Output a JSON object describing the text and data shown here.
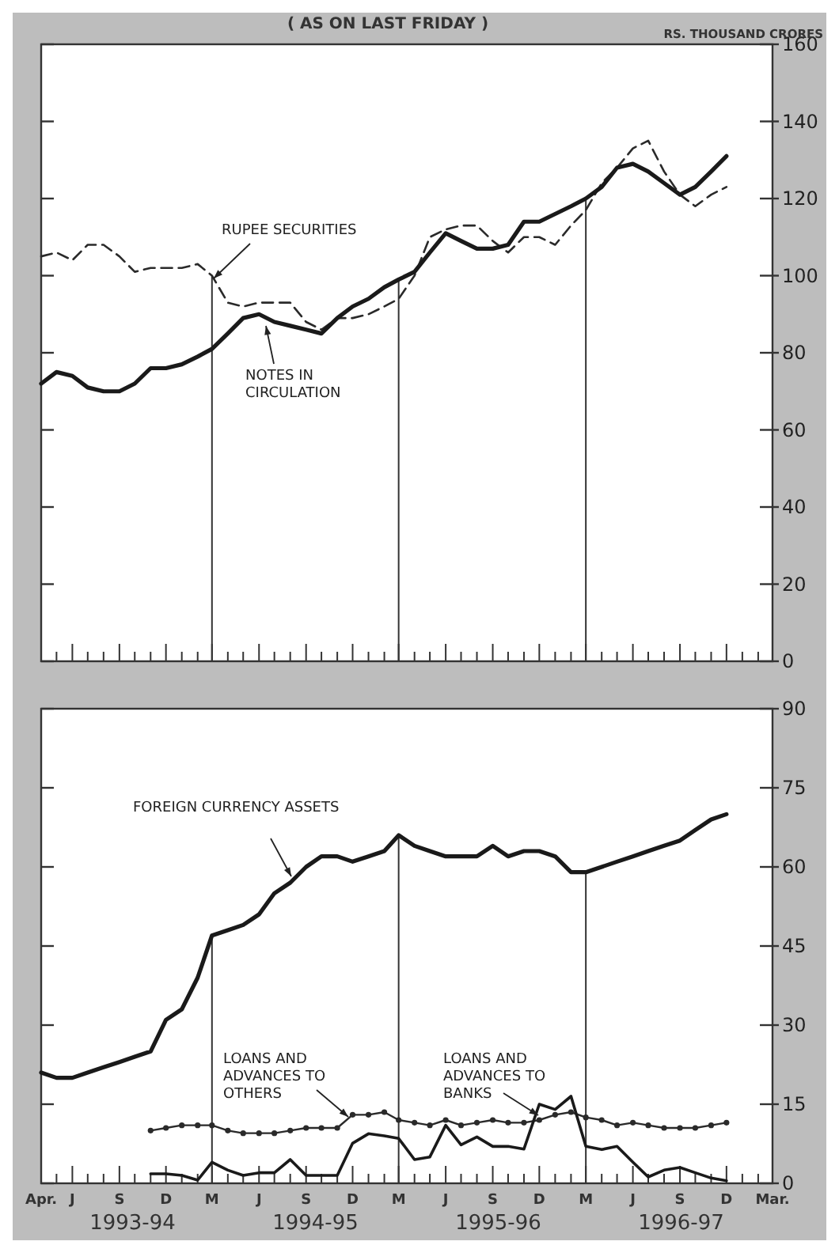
{
  "chart_data": [
    {
      "type": "line",
      "title": "( AS ON LAST FRIDAY )",
      "ylabel": "RS. THOUSAND CRORES",
      "xlim": [
        "1993-04",
        "1997-03"
      ],
      "ylim": [
        0,
        160
      ],
      "yticks": [
        0,
        20,
        40,
        60,
        80,
        100,
        120,
        140,
        160
      ],
      "tick_labels": "y",
      "xticks": [
        {
          "value": "1993-04",
          "label": null
        },
        {
          "value": "1993-05",
          "label": null
        },
        {
          "value": "1993-06",
          "label": null
        },
        {
          "value": "1993-07",
          "label": null
        },
        {
          "value": "1993-08",
          "label": null
        },
        {
          "value": "1993-09",
          "label": null
        },
        {
          "value": "1993-10",
          "label": null
        },
        {
          "value": "1993-11",
          "label": null
        },
        {
          "value": "1993-12",
          "label": null
        },
        {
          "value": "1994-01",
          "label": null
        },
        {
          "value": "1994-02",
          "label": null
        },
        {
          "value": "1994-03",
          "label": null
        },
        {
          "value": "1994-04",
          "label": null
        },
        {
          "value": "1994-05",
          "label": null
        },
        {
          "value": "1994-06",
          "label": null
        },
        {
          "value": "1994-07",
          "label": null
        },
        {
          "value": "1994-08",
          "label": null
        },
        {
          "value": "1994-09",
          "label": null
        },
        {
          "value": "1994-10",
          "label": null
        },
        {
          "value": "1994-11",
          "label": null
        },
        {
          "value": "1994-12",
          "label": null
        },
        {
          "value": "1995-01",
          "label": null
        },
        {
          "value": "1995-02",
          "label": null
        },
        {
          "value": "1995-03",
          "label": null
        },
        {
          "value": "1995-04",
          "label": null
        },
        {
          "value": "1995-05",
          "label": null
        },
        {
          "value": "1995-06",
          "label": null
        },
        {
          "value": "1995-07",
          "label": null
        },
        {
          "value": "1995-08",
          "label": null
        },
        {
          "value": "1995-09",
          "label": null
        },
        {
          "value": "1995-10",
          "label": null
        },
        {
          "value": "1995-11",
          "label": null
        },
        {
          "value": "1995-12",
          "label": null
        },
        {
          "value": "1996-01",
          "label": null
        },
        {
          "value": "1996-02",
          "label": null
        },
        {
          "value": "1996-03",
          "label": null
        },
        {
          "value": "1996-04",
          "label": null
        },
        {
          "value": "1996-05",
          "label": null
        },
        {
          "value": "1996-06",
          "label": null
        },
        {
          "value": "1996-07",
          "label": null
        },
        {
          "value": "1996-08",
          "label": null
        },
        {
          "value": "1996-09",
          "label": null
        },
        {
          "value": "1996-10",
          "label": null
        },
        {
          "value": "1996-11",
          "label": null
        },
        {
          "value": "1996-12",
          "label": null
        },
        {
          "value": "1997-01",
          "label": null
        },
        {
          "value": "1997-02",
          "label": null
        },
        {
          "value": "1997-03",
          "label": null
        }
      ],
      "x": [
        "1993-04",
        "1993-05",
        "1993-06",
        "1993-07",
        "1993-08",
        "1993-09",
        "1993-10",
        "1993-11",
        "1993-12",
        "1994-01",
        "1994-02",
        "1994-03",
        "1994-04",
        "1994-05",
        "1994-06",
        "1994-07",
        "1994-08",
        "1994-09",
        "1994-10",
        "1994-11",
        "1994-12",
        "1995-01",
        "1995-02",
        "1995-03",
        "1995-04",
        "1995-05",
        "1995-06",
        "1995-07",
        "1995-08",
        "1995-09",
        "1995-10",
        "1995-11",
        "1995-12",
        "1996-01",
        "1996-02",
        "1996-03",
        "1996-04",
        "1996-05",
        "1996-06",
        "1996-07",
        "1996-08",
        "1996-09",
        "1996-10",
        "1996-11",
        "1996-12"
      ],
      "ref_lines": [
        {
          "axis": "x",
          "value": "1994-03",
          "color": "#333333"
        },
        {
          "axis": "x",
          "value": "1995-03",
          "color": "#333333"
        },
        {
          "axis": "x",
          "value": "1996-03",
          "color": "#333333"
        }
      ],
      "series": [
        {
          "name": "RUPEE SECURITIES",
          "color": "#2a2a2a",
          "line_style": "dashed",
          "values": [
            105,
            106,
            104,
            108,
            108,
            105,
            101,
            102,
            102,
            102,
            103,
            100,
            93,
            92,
            93,
            93,
            93,
            88,
            86,
            89,
            89,
            90,
            92,
            94,
            100,
            110,
            112,
            113,
            113,
            109,
            106,
            110,
            110,
            108,
            113,
            117,
            124,
            128,
            133,
            135,
            127,
            121,
            118,
            121,
            123
          ]
        },
        {
          "name": "NOTES IN CIRCULATION",
          "color": "#1a1a1a",
          "line_style": "solid",
          "values": [
            72,
            75,
            74,
            71,
            70,
            70,
            72,
            76,
            76,
            77,
            79,
            81,
            85,
            89,
            90,
            88,
            87,
            86,
            85,
            89,
            92,
            94,
            97,
            99,
            101,
            106,
            111,
            109,
            107,
            107,
            108,
            114,
            114,
            116,
            118,
            120,
            123,
            128,
            129,
            127,
            124,
            121,
            123,
            127,
            131
          ]
        }
      ]
    },
    {
      "type": "line",
      "xlim": [
        "1993-04",
        "1997-03"
      ],
      "ylim": [
        0,
        90
      ],
      "yticks": [
        0,
        15,
        30,
        45,
        60,
        75,
        90
      ],
      "xticks": [
        {
          "value": "1993-04",
          "label": "Apr."
        },
        {
          "value": "1993-05",
          "label": null
        },
        {
          "value": "1993-06",
          "label": "J"
        },
        {
          "value": "1993-07",
          "label": null
        },
        {
          "value": "1993-08",
          "label": null
        },
        {
          "value": "1993-09",
          "label": "S"
        },
        {
          "value": "1993-10",
          "label": null
        },
        {
          "value": "1993-11",
          "label": null
        },
        {
          "value": "1993-12",
          "label": "D"
        },
        {
          "value": "1994-01",
          "label": null
        },
        {
          "value": "1994-02",
          "label": null
        },
        {
          "value": "1994-03",
          "label": "M"
        },
        {
          "value": "1994-04",
          "label": null
        },
        {
          "value": "1994-05",
          "label": null
        },
        {
          "value": "1994-06",
          "label": "J"
        },
        {
          "value": "1994-07",
          "label": null
        },
        {
          "value": "1994-08",
          "label": null
        },
        {
          "value": "1994-09",
          "label": "S"
        },
        {
          "value": "1994-10",
          "label": null
        },
        {
          "value": "1994-11",
          "label": null
        },
        {
          "value": "1994-12",
          "label": "D"
        },
        {
          "value": "1995-01",
          "label": null
        },
        {
          "value": "1995-02",
          "label": null
        },
        {
          "value": "1995-03",
          "label": "M"
        },
        {
          "value": "1995-04",
          "label": null
        },
        {
          "value": "1995-05",
          "label": null
        },
        {
          "value": "1995-06",
          "label": "J"
        },
        {
          "value": "1995-07",
          "label": null
        },
        {
          "value": "1995-08",
          "label": null
        },
        {
          "value": "1995-09",
          "label": "S"
        },
        {
          "value": "1995-10",
          "label": null
        },
        {
          "value": "1995-11",
          "label": null
        },
        {
          "value": "1995-12",
          "label": "D"
        },
        {
          "value": "1996-01",
          "label": null
        },
        {
          "value": "1996-02",
          "label": null
        },
        {
          "value": "1996-03",
          "label": "M"
        },
        {
          "value": "1996-04",
          "label": null
        },
        {
          "value": "1996-05",
          "label": null
        },
        {
          "value": "1996-06",
          "label": "J"
        },
        {
          "value": "1996-07",
          "label": null
        },
        {
          "value": "1996-08",
          "label": null
        },
        {
          "value": "1996-09",
          "label": "S"
        },
        {
          "value": "1996-10",
          "label": null
        },
        {
          "value": "1996-11",
          "label": null
        },
        {
          "value": "1996-12",
          "label": "D"
        },
        {
          "value": "1997-01",
          "label": null
        },
        {
          "value": "1997-02",
          "label": null
        },
        {
          "value": "1997-03",
          "label": "Mar."
        }
      ],
      "x": [
        "1993-04",
        "1993-05",
        "1993-06",
        "1993-07",
        "1993-08",
        "1993-09",
        "1993-10",
        "1993-11",
        "1993-12",
        "1994-01",
        "1994-02",
        "1994-03",
        "1994-04",
        "1994-05",
        "1994-06",
        "1994-07",
        "1994-08",
        "1994-09",
        "1994-10",
        "1994-11",
        "1994-12",
        "1995-01",
        "1995-02",
        "1995-03",
        "1995-04",
        "1995-05",
        "1995-06",
        "1995-07",
        "1995-08",
        "1995-09",
        "1995-10",
        "1995-11",
        "1995-12",
        "1996-01",
        "1996-02",
        "1996-03",
        "1996-04",
        "1996-05",
        "1996-06",
        "1996-07",
        "1996-08",
        "1996-09",
        "1996-10",
        "1996-11",
        "1996-12"
      ],
      "ref_lines": [
        {
          "axis": "x",
          "value": "1994-03",
          "color": "#333333"
        },
        {
          "axis": "x",
          "value": "1995-03",
          "color": "#333333"
        },
        {
          "axis": "x",
          "value": "1996-03",
          "color": "#333333"
        }
      ],
      "annotations": [
        "1993-94",
        "1994-95",
        "1995-96",
        "1996-97"
      ],
      "series": [
        {
          "name": "FOREIGN CURRENCY ASSETS",
          "color": "#1a1a1a",
          "line_style": "solid",
          "values": [
            21,
            20,
            20,
            21,
            22,
            23,
            24,
            25,
            31,
            33,
            39,
            47,
            48,
            49,
            51,
            55,
            57,
            60,
            62,
            62,
            61,
            62,
            63,
            66,
            64,
            63,
            62,
            62,
            62,
            64,
            62,
            63,
            63,
            62,
            59,
            59,
            60,
            61,
            62,
            63,
            64,
            65,
            67,
            69,
            70
          ]
        },
        {
          "name": "LOANS AND ADVANCES TO OTHERS",
          "color": "#2a2a2a",
          "line_style": "solid",
          "marker": "circle",
          "values": [
            null,
            null,
            null,
            null,
            null,
            null,
            null,
            10,
            10.5,
            11,
            11,
            11,
            10,
            9.5,
            9.5,
            9.5,
            10,
            10.5,
            10.5,
            10.5,
            13,
            13,
            13.5,
            12,
            11.5,
            11,
            12,
            11,
            11.5,
            12,
            11.5,
            11.5,
            12,
            13,
            13.5,
            12.5,
            12,
            11,
            11.5,
            11,
            10.5,
            10.5,
            10.5,
            11,
            11.5
          ]
        },
        {
          "name": "LOANS AND ADVANCES TO BANKS",
          "color": "#1a1a1a",
          "line_style": "solid",
          "values": [
            null,
            null,
            null,
            null,
            null,
            null,
            null,
            1.8,
            1.8,
            1.5,
            0.6,
            4,
            2.5,
            1.5,
            2,
            2,
            4.5,
            1.5,
            1.5,
            1.5,
            7.6,
            9.4,
            9,
            8.5,
            4.5,
            5,
            11,
            7.3,
            8.8,
            7,
            7,
            6.5,
            15,
            14,
            16.5,
            7,
            6.4,
            7,
            4,
            1.2,
            2.5,
            3,
            2,
            1,
            0.5
          ]
        }
      ]
    }
  ]
}
